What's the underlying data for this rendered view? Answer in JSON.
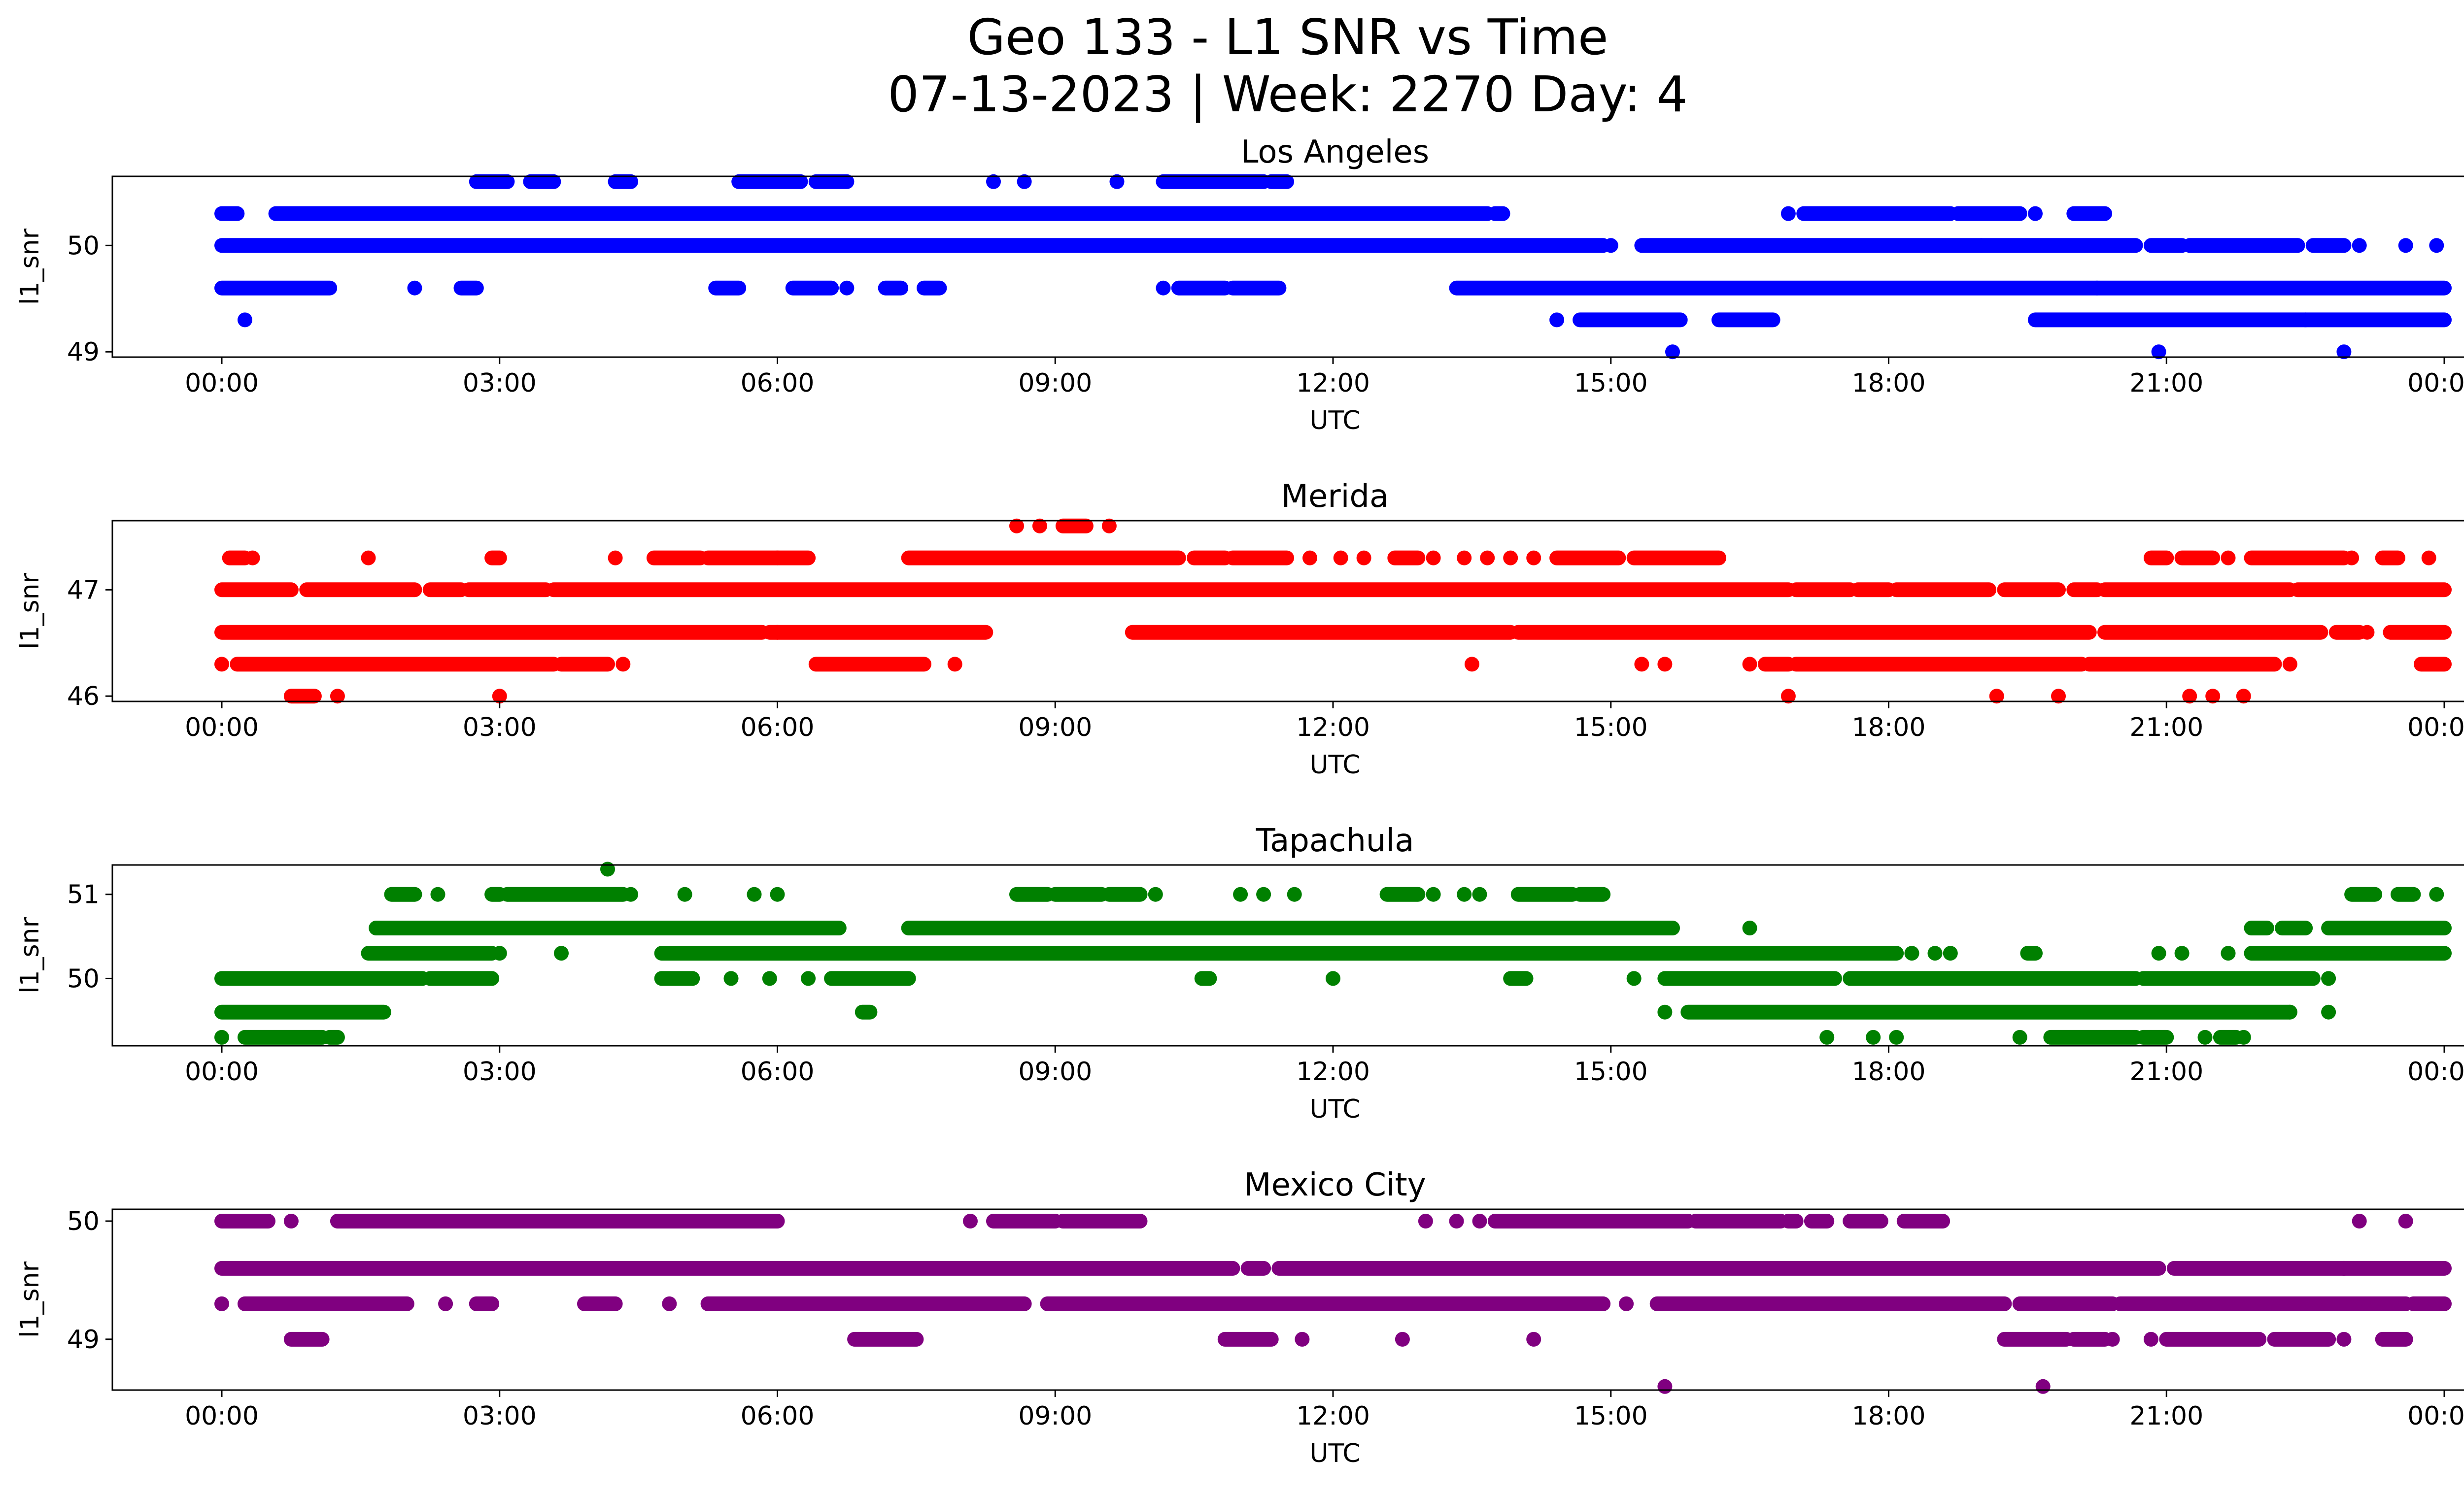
{
  "figure": {
    "title_line1": "Geo 133 - L1 SNR vs Time",
    "title_line2": "07-13-2023 | Week: 2270 Day: 4"
  },
  "chart_data": [
    {
      "type": "scatter",
      "title": "Los Angeles",
      "xlabel": "UTC",
      "ylabel": "l1_snr",
      "color": "#0000ff",
      "x_ticks": [
        "00:00",
        "03:00",
        "06:00",
        "09:00",
        "12:00",
        "15:00",
        "18:00",
        "21:00",
        "00:00"
      ],
      "xlim": [
        "2023-07-13 00:00",
        "2023-07-14 00:00"
      ],
      "y_ticks": [
        49,
        50
      ],
      "ylim": [
        48.95,
        50.65
      ],
      "grid": false,
      "levels": [
        {
          "y": 50.6,
          "times": [
            "02:45-03:05",
            "03:20-03:35",
            "04:15-04:25",
            "05:35-06:15",
            "06:25-06:45",
            "08:20",
            "08:40",
            "09:40",
            "10:10-11:15",
            "11:20-11:30"
          ]
        },
        {
          "y": 50.3,
          "times": [
            "00:00-00:10",
            "00:35-13:40",
            "13:45-13:50",
            "16:55",
            "17:05-18:40",
            "18:45-19:25",
            "19:35",
            "20:00-20:20"
          ]
        },
        {
          "y": 50.0,
          "times": [
            "00:00-14:55",
            "15:00",
            "15:20-19:00",
            "19:00-20:40",
            "20:50-21:10",
            "21:15-22:25",
            "22:35-22:55",
            "23:05",
            "23:35",
            "23:55"
          ]
        },
        {
          "y": 49.6,
          "times": [
            "00:00-01:10",
            "02:05",
            "02:35-02:45",
            "05:20-05:35",
            "06:10-06:35",
            "06:45",
            "07:10-07:20",
            "07:35-07:45",
            "10:10",
            "10:20-10:50",
            "10:55-11:25",
            "13:20-20:15",
            "20:15-24:00"
          ]
        },
        {
          "y": 49.3,
          "times": [
            "00:15",
            "14:25",
            "14:40-15:45",
            "16:10-16:45",
            "19:35-22:30",
            "22:30-24:00"
          ]
        },
        {
          "y": 49.0,
          "times": [
            "15:40",
            "20:55",
            "22:55"
          ]
        }
      ]
    },
    {
      "type": "scatter",
      "title": "Merida",
      "xlabel": "UTC",
      "ylabel": "l1_snr",
      "color": "#ff0000",
      "x_ticks": [
        "00:00",
        "03:00",
        "06:00",
        "09:00",
        "12:00",
        "15:00",
        "18:00",
        "21:00",
        "00:00"
      ],
      "xlim": [
        "2023-07-13 00:00",
        "2023-07-14 00:00"
      ],
      "y_ticks": [
        46,
        47
      ],
      "ylim": [
        45.95,
        47.65
      ],
      "grid": false,
      "levels": [
        {
          "y": 47.6,
          "times": [
            "08:35",
            "08:50",
            "09:05-09:20",
            "09:35"
          ]
        },
        {
          "y": 47.3,
          "times": [
            "00:05-00:15",
            "00:20",
            "01:35",
            "02:55-03:00",
            "04:15",
            "04:40-05:10",
            "05:15-06:00",
            "06:00-06:20",
            "07:25-10:20",
            "10:30-10:50",
            "10:55-11:30",
            "11:45",
            "12:05",
            "12:20",
            "12:40-12:55",
            "13:05",
            "13:25",
            "13:40",
            "13:55",
            "14:10",
            "14:25-15:05",
            "15:15-16:10",
            "20:50-21:00",
            "21:10-21:30",
            "21:40",
            "21:55-22:55",
            "23:00",
            "23:20-23:30",
            "23:50"
          ]
        },
        {
          "y": 47.0,
          "times": [
            "00:00-00:45",
            "00:55-02:05",
            "02:15-02:35",
            "02:40-03:30",
            "03:35-16:55",
            "17:00-17:35",
            "17:40-18:00",
            "18:05-19:05",
            "19:15-19:50",
            "20:00-20:15",
            "20:20-22:20",
            "22:25-24:00"
          ]
        },
        {
          "y": 46.6,
          "times": [
            "00:00-05:50",
            "05:55-06:00",
            "06:00-08:15",
            "09:50-13:55",
            "14:00-20:10",
            "20:20-22:40",
            "22:50-23:05",
            "23:10",
            "23:25-24:00"
          ]
        },
        {
          "y": 46.3,
          "times": [
            "00:00",
            "00:10-03:35",
            "03:40-04:10",
            "04:20",
            "06:25-07:35",
            "07:55",
            "13:30",
            "15:20",
            "15:35",
            "16:30",
            "16:40-16:55",
            "17:00-20:05",
            "20:10-22:10",
            "22:20",
            "23:45-24:00"
          ]
        },
        {
          "y": 46.0,
          "times": [
            "00:45-01:00",
            "01:15",
            "03:00",
            "16:55",
            "19:10",
            "19:50",
            "21:15",
            "21:30",
            "21:50"
          ]
        }
      ]
    },
    {
      "type": "scatter",
      "title": "Tapachula",
      "xlabel": "UTC",
      "ylabel": "l1_snr",
      "color": "#008000",
      "x_ticks": [
        "00:00",
        "03:00",
        "06:00",
        "09:00",
        "12:00",
        "15:00",
        "18:00",
        "21:00",
        "00:00"
      ],
      "xlim": [
        "2023-07-13 00:00",
        "2023-07-14 00:00"
      ],
      "y_ticks": [
        50,
        51
      ],
      "ylim": [
        49.2,
        51.35
      ],
      "grid": false,
      "levels": [
        {
          "y": 51.3,
          "times": [
            "04:10"
          ]
        },
        {
          "y": 51.0,
          "times": [
            "01:50-02:05",
            "02:20",
            "02:55-03:00",
            "03:05-04:20",
            "04:25",
            "05:00",
            "05:45",
            "06:00",
            "08:35-08:55",
            "09:00-09:30",
            "09:35-09:55",
            "10:05",
            "11:00",
            "11:15",
            "11:35",
            "12:35-12:55",
            "13:05",
            "13:25",
            "13:35",
            "14:00-14:35",
            "14:40-14:55",
            "23:00-23:15",
            "23:30-23:40",
            "23:55"
          ]
        },
        {
          "y": 50.6,
          "times": [
            "01:40-06:40",
            "07:25-15:40",
            "16:30",
            "21:55-22:05",
            "22:15-22:30",
            "22:45-24:00"
          ]
        },
        {
          "y": 50.3,
          "times": [
            "01:35-02:55",
            "03:00",
            "03:40",
            "04:45-18:05",
            "18:15",
            "18:30",
            "18:40",
            "19:30-19:35",
            "20:55",
            "21:10",
            "21:40",
            "21:55-24:00"
          ]
        },
        {
          "y": 50.0,
          "times": [
            "00:00-02:10",
            "02:15-02:55",
            "04:45-05:05",
            "05:30",
            "05:55",
            "06:20",
            "06:35-07:25",
            "10:35-10:40",
            "12:00",
            "13:55-14:05",
            "15:15",
            "15:35-17:25",
            "17:35-20:40",
            "20:45-22:35",
            "22:45"
          ]
        },
        {
          "y": 49.6,
          "times": [
            "00:00-01:45",
            "06:55-07:00",
            "15:35",
            "15:50-22:20",
            "22:20",
            "22:45"
          ]
        },
        {
          "y": 49.3,
          "times": [
            "00:00",
            "00:15-01:05",
            "01:10-01:15",
            "17:20",
            "17:50",
            "18:05",
            "19:25",
            "19:45-20:40",
            "20:45-21:00",
            "21:25",
            "21:35-21:45",
            "21:50"
          ]
        }
      ]
    },
    {
      "type": "scatter",
      "title": "Mexico City",
      "xlabel": "UTC",
      "ylabel": "l1_snr",
      "color": "#800080",
      "x_ticks": [
        "00:00",
        "03:00",
        "06:00",
        "09:00",
        "12:00",
        "15:00",
        "18:00",
        "21:00",
        "00:00"
      ],
      "xlim": [
        "2023-07-13 00:00",
        "2023-07-14 00:00"
      ],
      "y_ticks": [
        49,
        50
      ],
      "ylim": [
        48.57,
        50.1
      ],
      "grid": false,
      "levels": [
        {
          "y": 50.0,
          "times": [
            "00:00-00:30",
            "00:45",
            "01:15-06:00",
            "08:05",
            "08:20-09:00",
            "09:05-09:55",
            "13:00",
            "13:20",
            "13:35",
            "13:45-15:50",
            "15:55-16:50",
            "16:55-17:00",
            "17:10-17:20",
            "17:35-17:55",
            "18:10-18:35",
            "23:05",
            "23:35"
          ]
        },
        {
          "y": 49.6,
          "times": [
            "00:00-10:55",
            "11:05-11:15",
            "11:25-20:55",
            "21:05-22:55",
            "22:55-24:00"
          ]
        },
        {
          "y": 49.3,
          "times": [
            "00:00",
            "00:15-02:00",
            "02:25",
            "02:45-02:55",
            "03:55-04:15",
            "04:50",
            "05:15-08:40",
            "08:55-14:55",
            "15:10",
            "15:30-19:15",
            "19:25-20:25",
            "20:30-23:35",
            "23:40-24:00"
          ]
        },
        {
          "y": 49.0,
          "times": [
            "00:45-01:05",
            "06:50-07:30",
            "10:50-11:20",
            "11:40",
            "12:45",
            "14:10",
            "19:15-19:55",
            "20:00-20:20",
            "20:25",
            "20:50",
            "21:00-22:00",
            "22:10-22:45",
            "22:55",
            "23:20-23:35"
          ]
        },
        {
          "y": 48.6,
          "times": [
            "15:35",
            "19:40"
          ]
        }
      ]
    }
  ]
}
